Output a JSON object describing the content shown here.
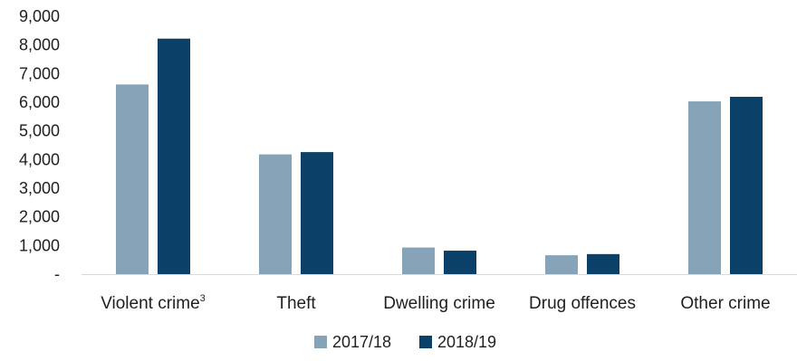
{
  "chart_data": {
    "type": "bar",
    "categories": [
      "Violent crime",
      "Theft",
      "Dwelling crime",
      "Drug offences",
      "Other crime"
    ],
    "category_superscripts": [
      "3",
      "",
      "",
      "",
      ""
    ],
    "series": [
      {
        "name": "2017/18",
        "values": [
          6620,
          4180,
          930,
          660,
          6030
        ],
        "color": "#86a3b8"
      },
      {
        "name": "2018/19",
        "values": [
          8220,
          4260,
          820,
          700,
          6190
        ],
        "color": "#0b4168"
      }
    ],
    "ylim": [
      0,
      9000
    ],
    "yticks": [
      {
        "value": 0,
        "label": "-"
      },
      {
        "value": 1000,
        "label": "1,000"
      },
      {
        "value": 2000,
        "label": "2,000"
      },
      {
        "value": 3000,
        "label": "3,000"
      },
      {
        "value": 4000,
        "label": "4,000"
      },
      {
        "value": 5000,
        "label": "5,000"
      },
      {
        "value": 6000,
        "label": "6,000"
      },
      {
        "value": 7000,
        "label": "7,000"
      },
      {
        "value": 8000,
        "label": "8,000"
      },
      {
        "value": 9000,
        "label": "9,000"
      }
    ],
    "title": "",
    "xlabel": "",
    "ylabel": "",
    "grid": false,
    "legend": "bottom-center"
  }
}
